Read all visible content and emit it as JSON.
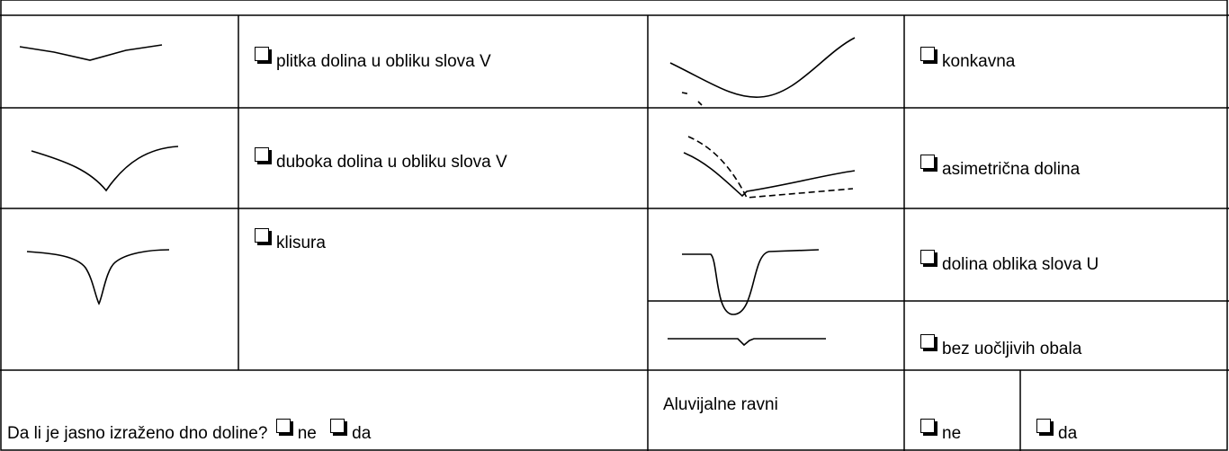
{
  "table": {
    "rows": [
      {
        "left": "plitka dolina u obliku slova V",
        "right": "konkavna"
      },
      {
        "left": "duboka dolina u obliku slova V",
        "right": "asimetrična dolina"
      },
      {
        "left": "klisura",
        "right": "dolina oblika slova U"
      },
      {
        "right": "bez uočljivih obala"
      }
    ]
  },
  "footer": {
    "question": "Da li je jasno izraženo dno doline?",
    "q_no": "ne",
    "q_yes": "da",
    "label": "Aluvijalne ravni",
    "no": "ne",
    "yes": "da"
  }
}
